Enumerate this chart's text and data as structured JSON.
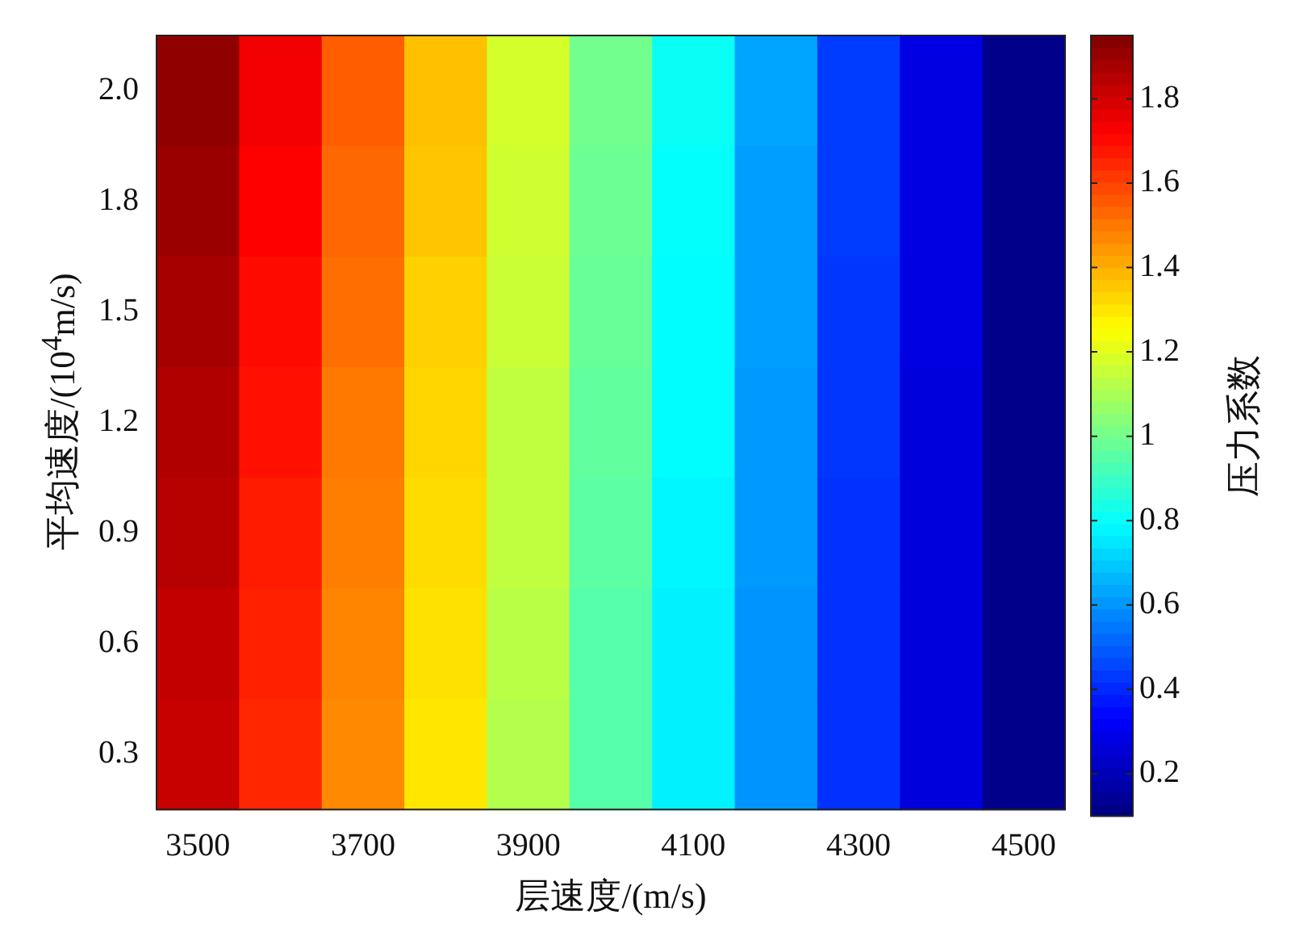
{
  "chart_data": {
    "type": "heatmap",
    "xlabel": "层速度/(m/s)",
    "ylabel": "平均速度/(10$^{4}$m/s)",
    "clabel": "压力系数",
    "categories": [
      "3500",
      null,
      "3700",
      null,
      "3900",
      null,
      "4100",
      null,
      "4300",
      null,
      "4500"
    ],
    "y_categories": [
      "2.0",
      "1.8",
      "1.5",
      "1.2",
      "0.9",
      "0.6",
      "0.3"
    ],
    "cells": [
      [
        1.92,
        1.74,
        1.55,
        1.37,
        1.18,
        1.0,
        0.81,
        0.63,
        0.44,
        0.28,
        0.12
      ],
      [
        1.9,
        1.72,
        1.53,
        1.36,
        1.17,
        0.99,
        0.8,
        0.62,
        0.44,
        0.28,
        0.12
      ],
      [
        1.88,
        1.7,
        1.52,
        1.34,
        1.16,
        0.98,
        0.79,
        0.62,
        0.43,
        0.28,
        0.12
      ],
      [
        1.86,
        1.69,
        1.5,
        1.33,
        1.14,
        0.97,
        0.79,
        0.61,
        0.43,
        0.27,
        0.12
      ],
      [
        1.85,
        1.67,
        1.49,
        1.32,
        1.14,
        0.96,
        0.78,
        0.61,
        0.42,
        0.27,
        0.12
      ],
      [
        1.83,
        1.66,
        1.48,
        1.31,
        1.13,
        0.95,
        0.77,
        0.6,
        0.42,
        0.27,
        0.12
      ],
      [
        1.82,
        1.65,
        1.47,
        1.3,
        1.12,
        0.95,
        0.77,
        0.6,
        0.42,
        0.27,
        0.12
      ]
    ],
    "clim": [
      0.1,
      1.95
    ],
    "cticks": [
      0.2,
      0.4,
      0.6,
      0.8,
      1,
      1.2,
      1.4,
      1.6,
      1.8
    ]
  }
}
